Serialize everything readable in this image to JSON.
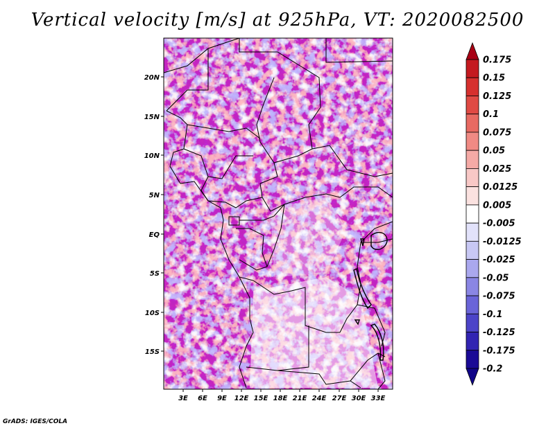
{
  "title": "Vertical velocity [m/s] at 925hPa, VT: 2020082500",
  "credit": "GrADS: IGES/COLA",
  "lat_labels": [
    "20N",
    "15N",
    "10N",
    "5N",
    "EQ",
    "5S",
    "10S",
    "15S"
  ],
  "lon_labels": [
    "3E",
    "6E",
    "9E",
    "12E",
    "15E",
    "18E",
    "21E",
    "24E",
    "27E",
    "30E",
    "33E"
  ],
  "colorbar": {
    "labels": [
      "0.175",
      "0.15",
      "0.125",
      "0.1",
      "0.075",
      "0.05",
      "0.025",
      "0.0125",
      "0.005",
      "-0.005",
      "-0.0125",
      "-0.025",
      "-0.05",
      "-0.075",
      "-0.1",
      "-0.125",
      "-0.175",
      "-0.2"
    ],
    "colors": [
      "#a80014",
      "#c41a20",
      "#d6302e",
      "#e04a44",
      "#e86a62",
      "#f08a84",
      "#f5aaa6",
      "#f8c8c6",
      "#fbe2e0",
      "#ffffff",
      "#e2e2fa",
      "#c8c8f4",
      "#aaa8ee",
      "#8a86e4",
      "#6a64d8",
      "#4c44c8",
      "#3224b2",
      "#1a0a96",
      "#100488"
    ]
  }
}
